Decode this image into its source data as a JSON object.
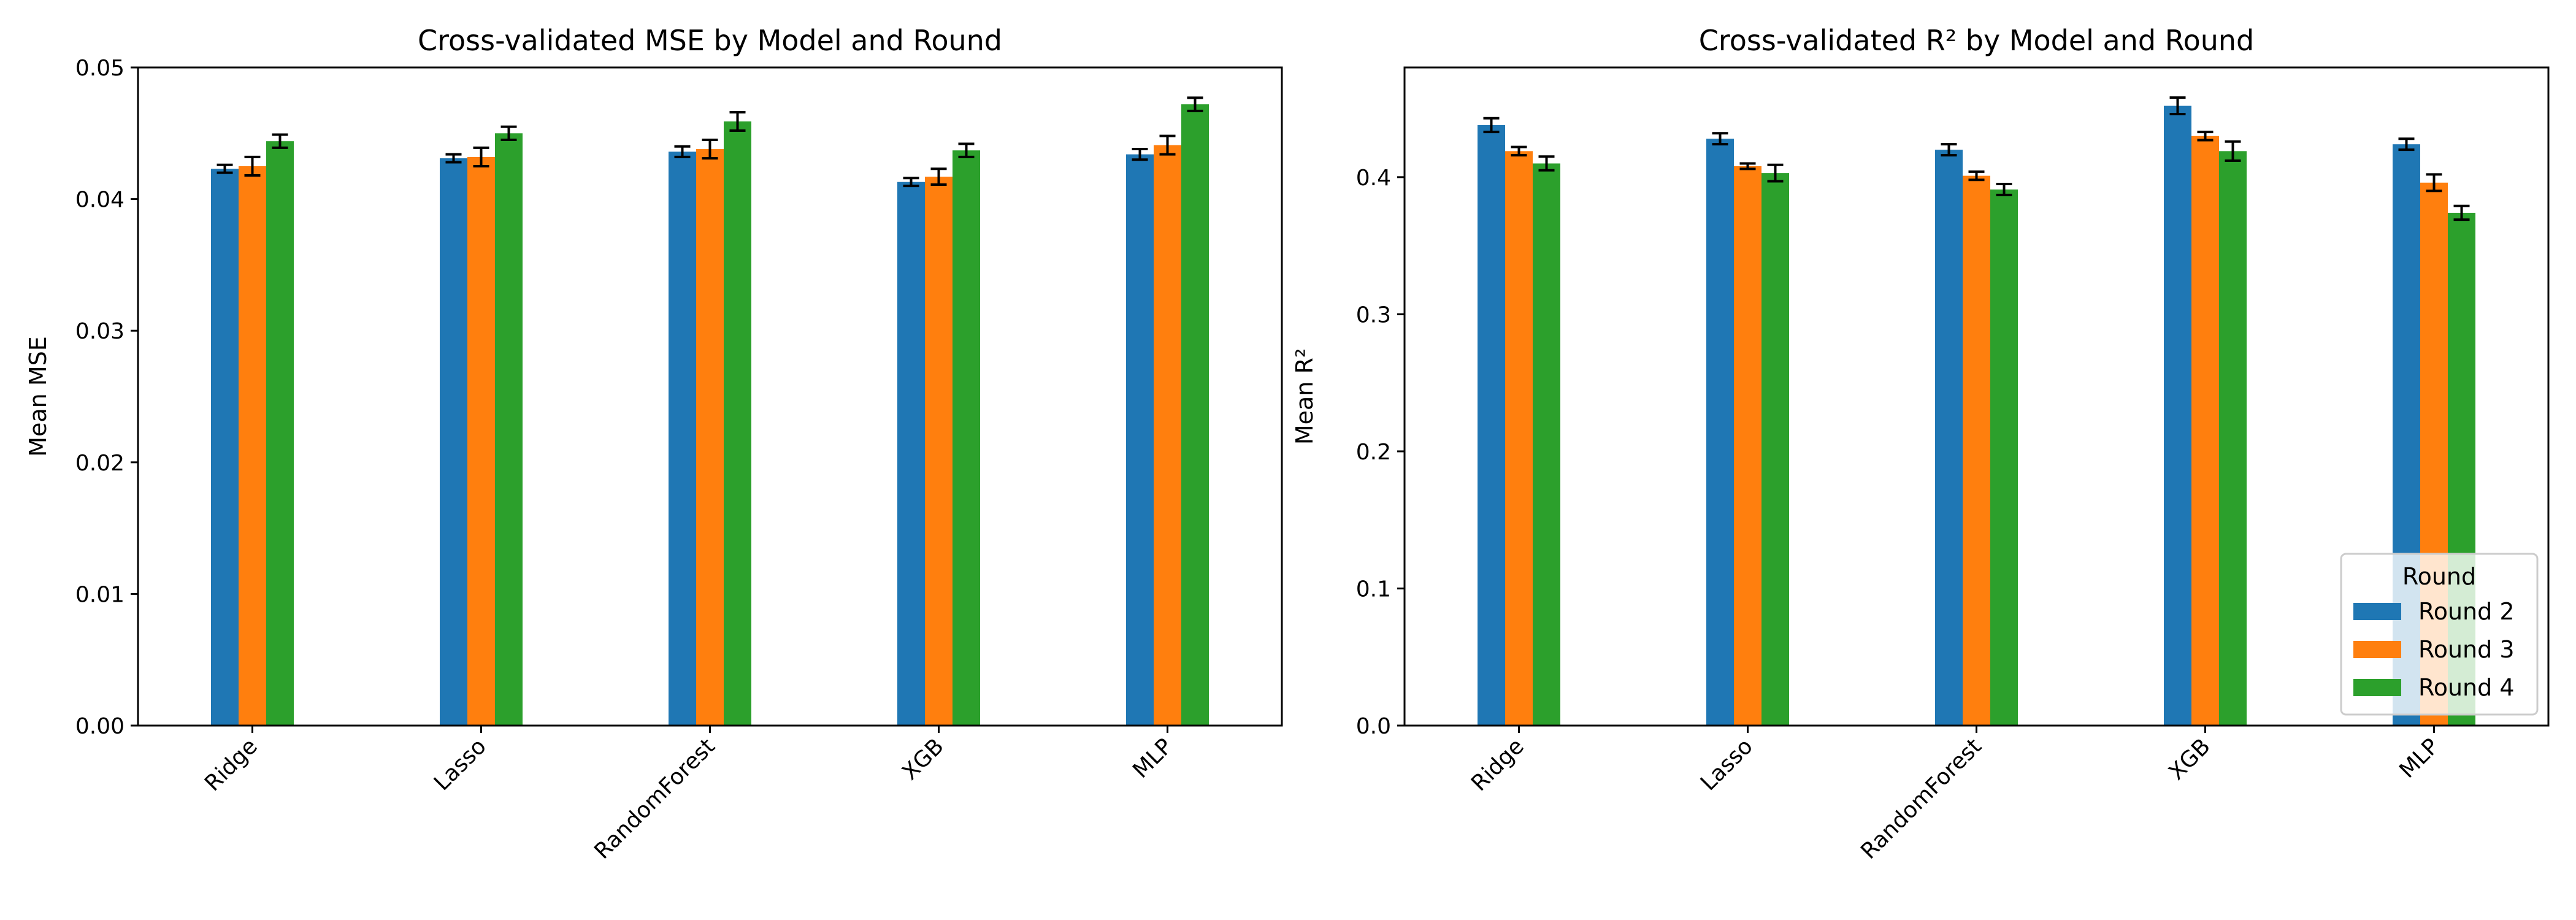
{
  "chart_data": [
    {
      "type": "bar",
      "title": "Cross-validated MSE by Model and Round",
      "xlabel": "",
      "ylabel": "Mean MSE",
      "categories": [
        "Ridge",
        "Lasso",
        "RandomForest",
        "XGB",
        "MLP"
      ],
      "ylim": [
        0,
        0.05
      ],
      "yticks": [
        "0.00",
        "0.01",
        "0.02",
        "0.03",
        "0.04",
        "0.05"
      ],
      "grid": false,
      "series": [
        {
          "name": "Round 2",
          "color": "#1f77b4",
          "values": [
            0.0423,
            0.0431,
            0.0436,
            0.0413,
            0.0434
          ],
          "errors": [
            0.0003,
            0.0003,
            0.0004,
            0.0003,
            0.0004
          ]
        },
        {
          "name": "Round 3",
          "color": "#ff7f0e",
          "values": [
            0.0425,
            0.0432,
            0.0438,
            0.0417,
            0.0441
          ],
          "errors": [
            0.0007,
            0.0007,
            0.0007,
            0.0006,
            0.0007
          ]
        },
        {
          "name": "Round 4",
          "color": "#2ca02c",
          "values": [
            0.0444,
            0.045,
            0.0459,
            0.0437,
            0.0472
          ],
          "errors": [
            0.0005,
            0.0005,
            0.0007,
            0.0005,
            0.0005
          ]
        }
      ]
    },
    {
      "type": "bar",
      "title": "Cross-validated R² by Model and Round",
      "xlabel": "",
      "ylabel": "Mean R²",
      "categories": [
        "Ridge",
        "Lasso",
        "RandomForest",
        "XGB",
        "MLP"
      ],
      "ylim": [
        0,
        0.48
      ],
      "yticks": [
        "0.0",
        "0.1",
        "0.2",
        "0.3",
        "0.4"
      ],
      "grid": false,
      "legend": {
        "title": "Round",
        "placement": "lower-right"
      },
      "series": [
        {
          "name": "Round 2",
          "color": "#1f77b4",
          "values": [
            0.438,
            0.428,
            0.42,
            0.452,
            0.424
          ],
          "errors": [
            0.005,
            0.004,
            0.004,
            0.006,
            0.004
          ]
        },
        {
          "name": "Round 3",
          "color": "#ff7f0e",
          "values": [
            0.419,
            0.408,
            0.401,
            0.43,
            0.396
          ],
          "errors": [
            0.003,
            0.002,
            0.003,
            0.003,
            0.006
          ]
        },
        {
          "name": "Round 4",
          "color": "#2ca02c",
          "values": [
            0.41,
            0.403,
            0.391,
            0.419,
            0.374
          ],
          "errors": [
            0.005,
            0.006,
            0.004,
            0.007,
            0.005
          ]
        }
      ]
    }
  ]
}
